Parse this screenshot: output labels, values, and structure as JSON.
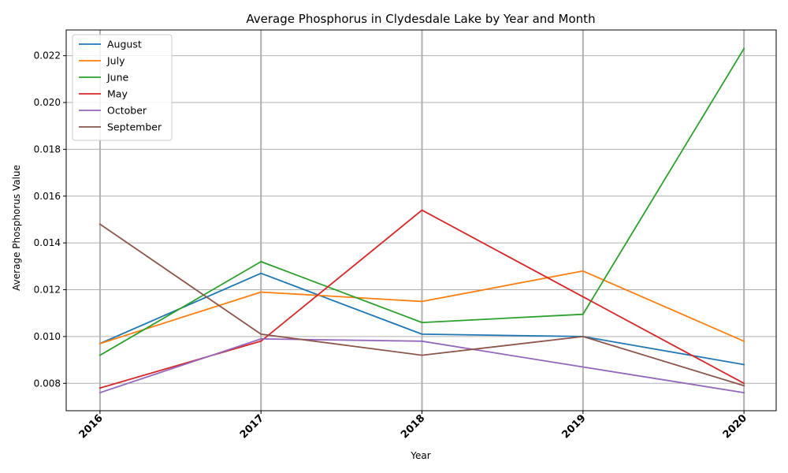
{
  "chart_data": {
    "type": "line",
    "title": "Average Phosphorus in Clydesdale Lake by Year and Month",
    "xlabel": "Year",
    "ylabel": "Average Phosphorus Value",
    "x": [
      "2016",
      "2017",
      "2018",
      "2019",
      "2020"
    ],
    "xlim": [
      2015.79,
      2020.2
    ],
    "ylim": [
      0.00683,
      0.0231
    ],
    "yticks": [
      "0.008",
      "0.010",
      "0.012",
      "0.014",
      "0.016",
      "0.018",
      "0.020",
      "0.022"
    ],
    "grid": true,
    "legend_position": "top-left",
    "series": [
      {
        "name": "August",
        "color": "#1f77b4",
        "values": [
          0.0097,
          0.0127,
          0.0101,
          0.01,
          0.0088
        ]
      },
      {
        "name": "July",
        "color": "#ff7f0e",
        "values": [
          0.0097,
          0.0119,
          0.0115,
          0.0128,
          0.0098
        ]
      },
      {
        "name": "June",
        "color": "#2ca02c",
        "values": [
          0.0092,
          0.0132,
          0.0106,
          0.01095,
          0.0223
        ]
      },
      {
        "name": "May",
        "color": "#d62728",
        "values": [
          0.0078,
          0.0098,
          0.0154,
          0.0117,
          0.008
        ]
      },
      {
        "name": "October",
        "color": "#9467bd",
        "values": [
          0.0076,
          0.0099,
          0.0098,
          0.0087,
          0.0076
        ]
      },
      {
        "name": "September",
        "color": "#8c564b",
        "values": [
          0.0148,
          0.0101,
          0.0092,
          0.01,
          0.0079
        ]
      }
    ]
  }
}
